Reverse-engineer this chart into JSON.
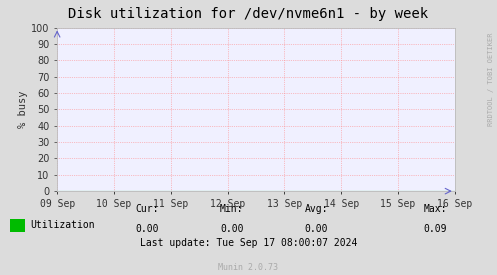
{
  "title": "Disk utilization for /dev/nvme6n1 - by week",
  "ylabel": "% busy",
  "background_color": "#dcdcdc",
  "plot_bg_color": "#f0f0ff",
  "grid_color_major": "#ff8888",
  "grid_color_minor": "#e8e8ff",
  "ylim": [
    0,
    100
  ],
  "yticks": [
    0,
    10,
    20,
    30,
    40,
    50,
    60,
    70,
    80,
    90,
    100
  ],
  "xlabel_dates": [
    "09 Sep",
    "10 Sep",
    "11 Sep",
    "12 Sep",
    "13 Sep",
    "14 Sep",
    "15 Sep",
    "16 Sep"
  ],
  "line_color": "#00cc00",
  "legend_label": "Utilization",
  "legend_color": "#00bb00",
  "cur_label": "Cur:",
  "cur_val": "0.00",
  "min_label": "Min:",
  "min_val": "0.00",
  "avg_label": "Avg:",
  "avg_val": "0.00",
  "max_label": "Max:",
  "max_val": "0.09",
  "last_update": "Last update: Tue Sep 17 08:00:07 2024",
  "munin_version": "Munin 2.0.73",
  "rrdtool_label": "RRDTOOL / TOBI OETIKER",
  "title_fontsize": 10,
  "axis_label_fontsize": 7.5,
  "tick_fontsize": 7,
  "stats_fontsize": 7,
  "legend_fontsize": 7,
  "rrdtool_fontsize": 5,
  "munin_fontsize": 6
}
